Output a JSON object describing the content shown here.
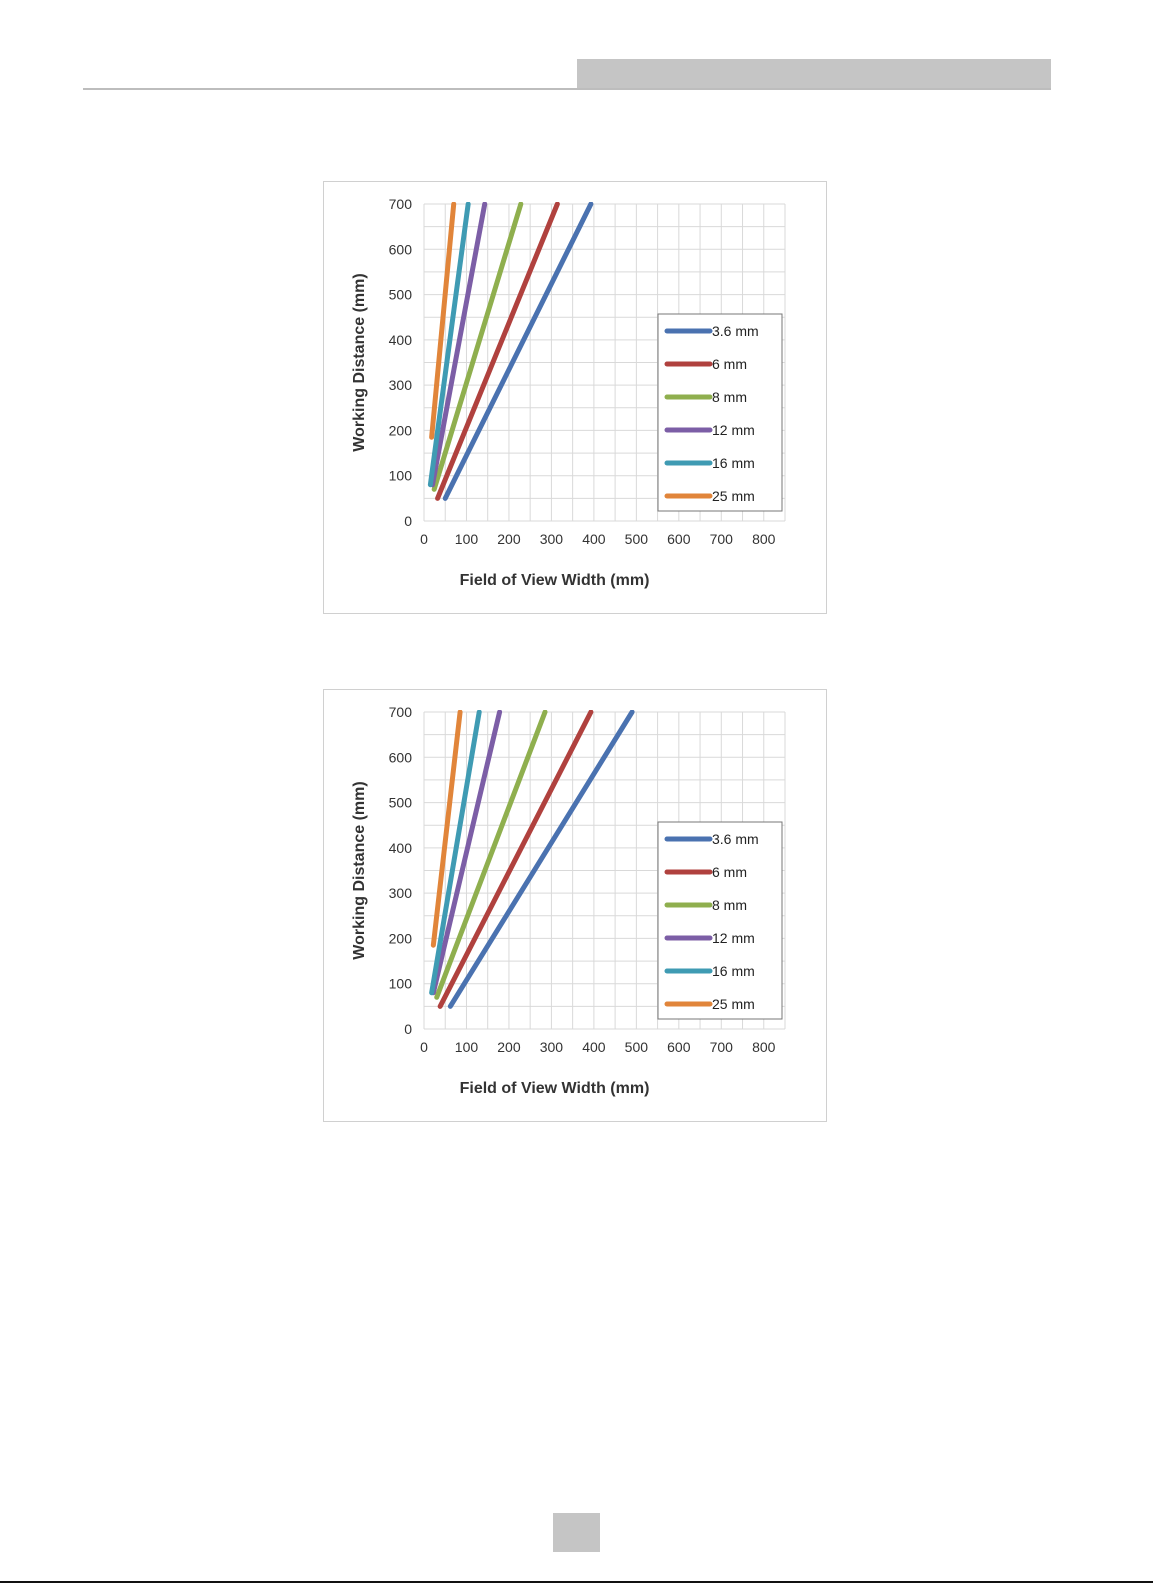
{
  "colors": {
    "series": [
      "#4a72b0",
      "#b0413e",
      "#8faf4e",
      "#7c5ea6",
      "#3f9bb3",
      "#e1853a"
    ],
    "grid": "#d9d9d9",
    "header_bar": "#c5c5c5"
  },
  "chart_data": [
    {
      "type": "line",
      "title": "",
      "xlabel": "Field of View Width (mm)",
      "ylabel": "Working Distance (mm)",
      "xlim": [
        0,
        850
      ],
      "ylim": [
        0,
        700
      ],
      "xticks": [
        "0",
        "100",
        "200",
        "300",
        "400",
        "500",
        "600",
        "700",
        "800"
      ],
      "yticks": [
        "0",
        "100",
        "200",
        "300",
        "400",
        "500",
        "600",
        "700"
      ],
      "grid": true,
      "legend_position": "right",
      "series": [
        {
          "name": "3.6 mm",
          "x": [
            50,
            393
          ],
          "y": [
            50,
            700
          ]
        },
        {
          "name": "6 mm",
          "x": [
            32,
            314
          ],
          "y": [
            50,
            700
          ]
        },
        {
          "name": "8 mm",
          "x": [
            24,
            228
          ],
          "y": [
            70,
            700
          ]
        },
        {
          "name": "12 mm",
          "x": [
            20,
            143
          ],
          "y": [
            80,
            700
          ]
        },
        {
          "name": "16 mm",
          "x": [
            15,
            104
          ],
          "y": [
            80,
            700
          ]
        },
        {
          "name": "25 mm",
          "x": [
            18,
            70
          ],
          "y": [
            185,
            700
          ]
        }
      ]
    },
    {
      "type": "line",
      "title": "",
      "xlabel": "Field of View Width (mm)",
      "ylabel": "Working Distance (mm)",
      "xlim": [
        0,
        850
      ],
      "ylim": [
        0,
        700
      ],
      "xticks": [
        "0",
        "100",
        "200",
        "300",
        "400",
        "500",
        "600",
        "700",
        "800"
      ],
      "yticks": [
        "0",
        "100",
        "200",
        "300",
        "400",
        "500",
        "600",
        "700"
      ],
      "grid": true,
      "legend_position": "right",
      "series": [
        {
          "name": "3.6 mm",
          "x": [
            62,
            490
          ],
          "y": [
            50,
            700
          ]
        },
        {
          "name": "6 mm",
          "x": [
            38,
            393
          ],
          "y": [
            50,
            700
          ]
        },
        {
          "name": "8 mm",
          "x": [
            30,
            285
          ],
          "y": [
            70,
            700
          ]
        },
        {
          "name": "12 mm",
          "x": [
            22,
            178
          ],
          "y": [
            80,
            700
          ]
        },
        {
          "name": "16 mm",
          "x": [
            18,
            130
          ],
          "y": [
            80,
            700
          ]
        },
        {
          "name": "25 mm",
          "x": [
            22,
            85
          ],
          "y": [
            185,
            700
          ]
        }
      ]
    }
  ]
}
